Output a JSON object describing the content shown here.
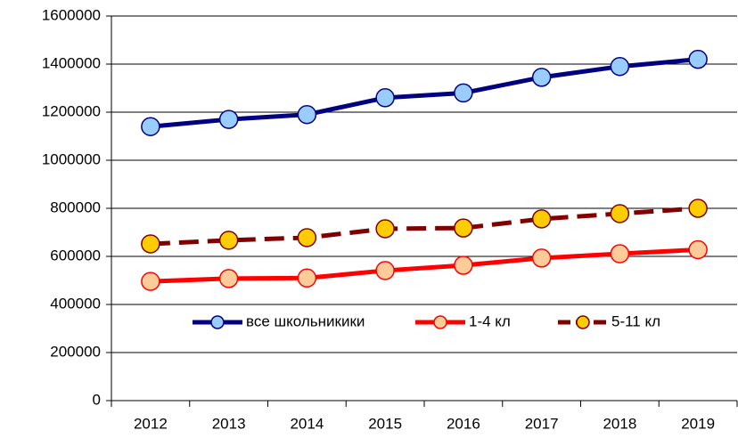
{
  "chart_data": {
    "type": "line",
    "categories": [
      "2012",
      "2013",
      "2014",
      "2015",
      "2016",
      "2017",
      "2018",
      "2019"
    ],
    "series": [
      {
        "name": "все школьникики",
        "color": "#000080",
        "marker_color": "#99ccff",
        "dashed": false,
        "values": [
          1140000,
          1170000,
          1190000,
          1260000,
          1280000,
          1345000,
          1390000,
          1420000
        ]
      },
      {
        "name": "1-4 кл",
        "color": "#ff0000",
        "marker_color": "#ffcc99",
        "dashed": false,
        "values": [
          496000,
          508000,
          510000,
          541000,
          563000,
          593000,
          611000,
          628000
        ]
      },
      {
        "name": "5-11 кл",
        "color": "#800000",
        "marker_color": "#ffcc00",
        "dashed": true,
        "values": [
          652000,
          667000,
          678000,
          715000,
          718000,
          756000,
          778000,
          800000
        ]
      }
    ],
    "ylim": [
      0,
      1600000
    ],
    "yticks": [
      0,
      200000,
      400000,
      600000,
      800000,
      1000000,
      1200000,
      1400000,
      1600000
    ],
    "grid": true,
    "legend": "lower center"
  }
}
